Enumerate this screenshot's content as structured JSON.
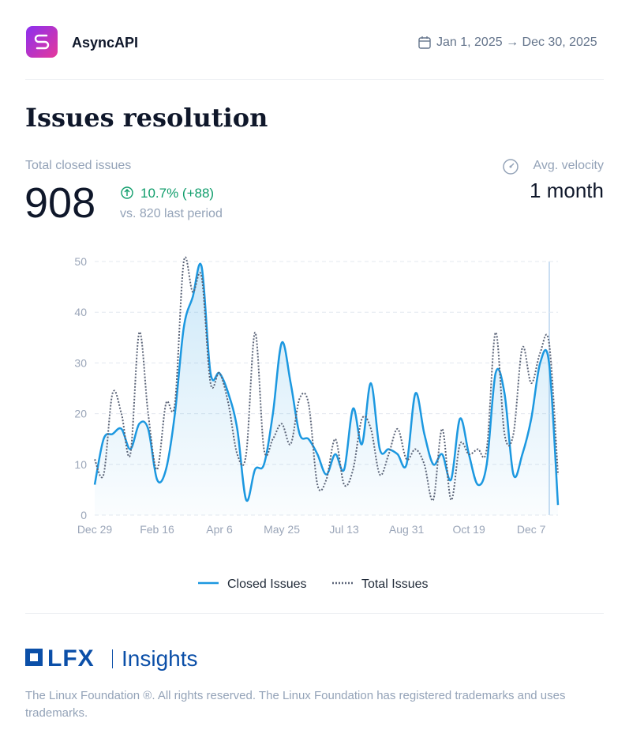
{
  "header": {
    "project": "AsyncAPI",
    "date_range": "Jan 1, 2025 → Dec 30, 2025"
  },
  "title": "Issues resolution",
  "stats": {
    "label": "Total closed issues",
    "value": 908,
    "delta": "10.7% (+88)",
    "comparison": "vs. 820 last period",
    "velocity_label": "Avg. velocity",
    "velocity_value": "1 month"
  },
  "chart_data": {
    "type": "line",
    "categories": [
      "Dec 29",
      null,
      null,
      null,
      null,
      null,
      null,
      "Feb 16",
      null,
      null,
      null,
      null,
      null,
      null,
      "Apr 6",
      null,
      null,
      null,
      null,
      null,
      null,
      "May 25",
      null,
      null,
      null,
      null,
      null,
      null,
      "Jul 13",
      null,
      null,
      null,
      null,
      null,
      null,
      "Aug 31",
      null,
      null,
      null,
      null,
      null,
      null,
      "Oct 19",
      null,
      null,
      null,
      null,
      null,
      null,
      "Dec 7",
      null,
      null,
      null
    ],
    "series": [
      {
        "name": "Closed Issues",
        "color": "#1c98e0",
        "style": "solid",
        "values": [
          6,
          15,
          16,
          17,
          13,
          18,
          17,
          7,
          9,
          20,
          37,
          43,
          49,
          28,
          28,
          24,
          17,
          3,
          9,
          10,
          20,
          34,
          26,
          16,
          15,
          12,
          8,
          12,
          9,
          21,
          14,
          26,
          13,
          13,
          12,
          10,
          24,
          16,
          10,
          12,
          7,
          19,
          12,
          6,
          10,
          28,
          24,
          8,
          12,
          19,
          30,
          30,
          2
        ]
      },
      {
        "name": "Total Issues",
        "color": "#5b6478",
        "style": "dotted",
        "values": [
          11,
          8,
          24,
          20,
          12,
          36,
          20,
          9,
          22,
          22,
          50,
          44,
          47,
          26,
          28,
          22,
          12,
          12,
          36,
          13,
          15,
          18,
          14,
          23,
          22,
          6,
          7,
          15,
          6,
          9,
          19,
          17,
          8,
          12,
          17,
          11,
          13,
          10,
          3,
          17,
          3,
          14,
          12,
          13,
          13,
          36,
          16,
          16,
          33,
          26,
          32,
          34,
          8
        ]
      }
    ],
    "ylim": [
      0,
      50
    ],
    "yticks": [
      0,
      10,
      20,
      30,
      40,
      50
    ],
    "grid": true
  },
  "footer": {
    "brand": "LFX",
    "product": "Insights",
    "copyright": "The Linux Foundation ®. All rights reserved. The Linux Foundation has registered trademarks and uses trademarks."
  }
}
